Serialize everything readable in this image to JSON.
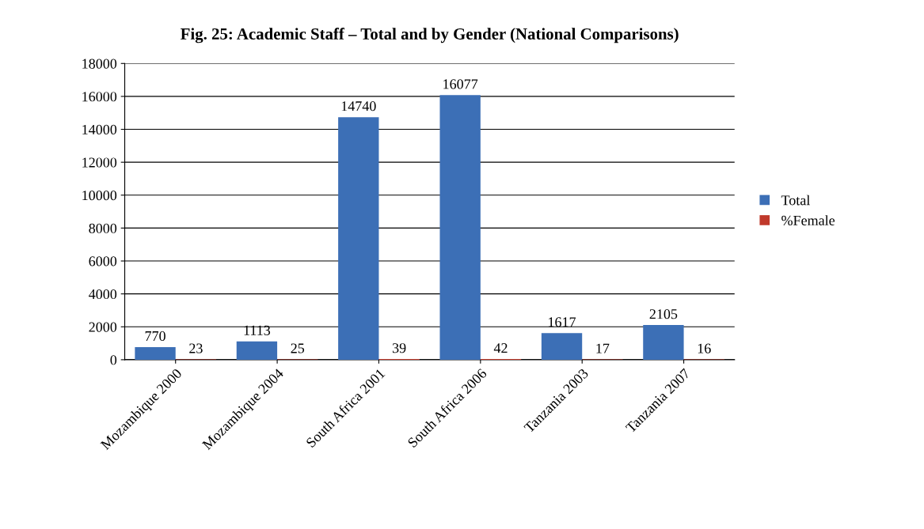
{
  "chart_data": {
    "type": "bar",
    "title": "Fig. 25: Academic Staff – Total and by Gender (National Comparisons)",
    "categories": [
      "Mozambique 2000",
      "Mozambique 2004",
      "South Africa 2001",
      "South Africa 2006",
      "Tanzania 2003",
      "Tanzania 2007"
    ],
    "series": [
      {
        "name": "Total",
        "color": "#3c6fb6",
        "values": [
          770,
          1113,
          14740,
          16077,
          1617,
          2105
        ]
      },
      {
        "name": "%Female",
        "color": "#c0392b",
        "values": [
          23,
          25,
          39,
          42,
          17,
          16
        ]
      }
    ],
    "ylim": [
      0,
      18000
    ],
    "yticks": [
      0,
      2000,
      4000,
      6000,
      8000,
      10000,
      12000,
      14000,
      16000,
      18000
    ],
    "grid": "y",
    "legend": "right",
    "data_labels": true
  }
}
